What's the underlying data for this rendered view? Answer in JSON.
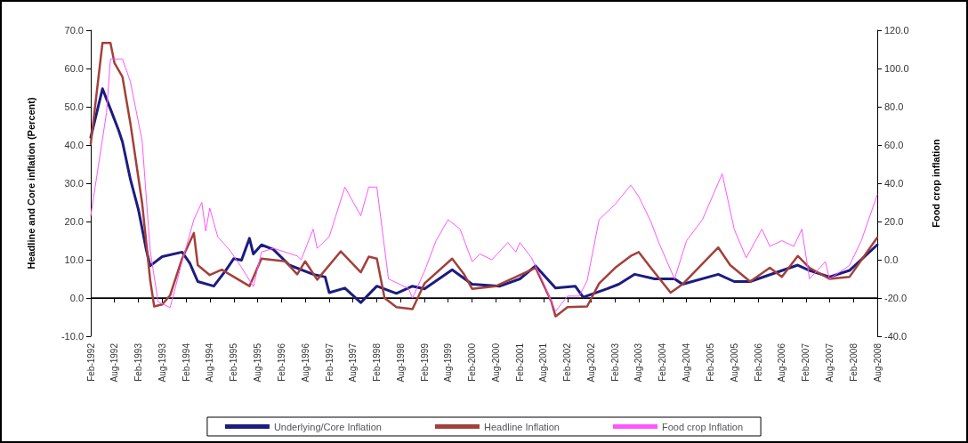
{
  "chart_data": {
    "type": "line",
    "ylabel": "Headline and Core inflation (Percent)",
    "y2label": "Food crop inflation",
    "xlim": [
      "1992-02",
      "2008-08"
    ],
    "xticks": [
      {
        "value": "1992-02",
        "label": "Feb-1992"
      },
      {
        "value": "1992-08",
        "label": "Aug-1992"
      },
      {
        "value": "1993-02",
        "label": "Feb-1993"
      },
      {
        "value": "1993-08",
        "label": "Aug-1993"
      },
      {
        "value": "1994-02",
        "label": "Feb-1994"
      },
      {
        "value": "1994-08",
        "label": "Aug-1994"
      },
      {
        "value": "1995-02",
        "label": "Feb-1995"
      },
      {
        "value": "1995-08",
        "label": "Aug-1995"
      },
      {
        "value": "1996-02",
        "label": "Feb-1996"
      },
      {
        "value": "1996-08",
        "label": "Aug-1996"
      },
      {
        "value": "1997-02",
        "label": "Feb-1997"
      },
      {
        "value": "1997-08",
        "label": "Aug-1997"
      },
      {
        "value": "1998-02",
        "label": "Feb-1998"
      },
      {
        "value": "1998-08",
        "label": "Aug-1998"
      },
      {
        "value": "1999-02",
        "label": "Feb-1999"
      },
      {
        "value": "1999-08",
        "label": "Aug-1999"
      },
      {
        "value": "2000-02",
        "label": "Feb-2000"
      },
      {
        "value": "2000-08",
        "label": "Aug-2000"
      },
      {
        "value": "2001-02",
        "label": "Feb-2001"
      },
      {
        "value": "2001-08",
        "label": "Aug-2001"
      },
      {
        "value": "2002-02",
        "label": "Feb-2002"
      },
      {
        "value": "2002-08",
        "label": "Aug-2002"
      },
      {
        "value": "2003-02",
        "label": "Feb-2003"
      },
      {
        "value": "2003-08",
        "label": "Aug-2003"
      },
      {
        "value": "2004-02",
        "label": "Feb-2004"
      },
      {
        "value": "2004-08",
        "label": "Aug-2004"
      },
      {
        "value": "2005-02",
        "label": "Feb-2005"
      },
      {
        "value": "2005-08",
        "label": "Aug-2005"
      },
      {
        "value": "2006-02",
        "label": "Feb-2006"
      },
      {
        "value": "2006-08",
        "label": "Aug-2006"
      },
      {
        "value": "2007-02",
        "label": "Feb-2007"
      },
      {
        "value": "2007-08",
        "label": "Aug-2007"
      },
      {
        "value": "2008-02",
        "label": "Feb-2008"
      },
      {
        "value": "2008-08",
        "label": "Aug-2008"
      }
    ],
    "ylim": [
      -10,
      70
    ],
    "yticks": [
      {
        "value": -10,
        "label": "-10.0"
      },
      {
        "value": 0,
        "label": "0.0"
      },
      {
        "value": 10,
        "label": "10.0"
      },
      {
        "value": 20,
        "label": "20.0"
      },
      {
        "value": 30,
        "label": "30.0"
      },
      {
        "value": 40,
        "label": "40.0"
      },
      {
        "value": 50,
        "label": "50.0"
      },
      {
        "value": 60,
        "label": "60.0"
      },
      {
        "value": 70,
        "label": "70.0"
      }
    ],
    "y2lim": [
      -40,
      120
    ],
    "y2ticks": [
      {
        "value": -40,
        "label": "-40.0"
      },
      {
        "value": -20,
        "label": "-20.0"
      },
      {
        "value": 0,
        "label": "0.0"
      },
      {
        "value": 20,
        "label": "20.0"
      },
      {
        "value": 40,
        "label": "40.0"
      },
      {
        "value": 60,
        "label": "60.0"
      },
      {
        "value": 80,
        "label": "80.0"
      },
      {
        "value": 100,
        "label": "100.0"
      },
      {
        "value": 120,
        "label": "120.0"
      }
    ],
    "ref_lines": [
      {
        "axis": "y",
        "value": 0,
        "color": "#000000"
      }
    ],
    "grid": false,
    "legend": "bottom",
    "marker": "none",
    "line_style": "solid",
    "series": [
      {
        "name": "Underlying/Core Inflation",
        "color": "#1c1c80",
        "x": [
          "1992-02",
          "1992-05",
          "1992-07",
          "1992-09",
          "1992-10",
          "1992-12",
          "1993-02",
          "1993-04",
          "1993-05",
          "1993-08",
          "1994-01",
          "1994-03",
          "1994-05",
          "1994-09",
          "1994-12",
          "1995-02",
          "1995-04",
          "1995-06",
          "1995-07",
          "1995-09",
          "1995-12",
          "1996-04",
          "1996-10",
          "1997-01",
          "1997-02",
          "1997-06",
          "1997-10",
          "1998-02",
          "1998-07",
          "1998-11",
          "1999-02",
          "1999-09",
          "2000-02",
          "2000-09",
          "2001-02",
          "2001-06",
          "2001-11",
          "2002-04",
          "2002-06",
          "2002-12",
          "2003-03",
          "2003-07",
          "2003-12",
          "2004-05",
          "2004-07",
          "2005-04",
          "2005-08",
          "2005-12",
          "2006-12",
          "2007-03",
          "2007-08",
          "2008-01",
          "2008-08"
        ],
        "values": [
          42,
          54.7,
          49.4,
          43.9,
          40.8,
          31,
          23,
          12.7,
          8.4,
          10.8,
          12,
          9.1,
          4.3,
          3.1,
          7.2,
          10.3,
          9.9,
          15.6,
          11.5,
          13.9,
          12.7,
          8.6,
          6.2,
          5.5,
          1.4,
          2.6,
          -1.2,
          3.1,
          1.2,
          3.1,
          2.4,
          7.4,
          3.6,
          3.1,
          5,
          8.4,
          2.6,
          3.1,
          0.2,
          2.4,
          3.6,
          6.2,
          5,
          5,
          3.6,
          6.2,
          4.3,
          4.3,
          8.6,
          7.2,
          5.5,
          7.2,
          13.9
        ]
      },
      {
        "name": "Headline Inflation",
        "color": "#a3403a",
        "x": [
          "1992-02",
          "1992-05",
          "1992-07",
          "1992-08",
          "1992-10",
          "1992-12",
          "1993-03",
          "1993-05",
          "1993-06",
          "1993-08",
          "1993-10",
          "1994-01",
          "1994-04",
          "1994-05",
          "1994-08",
          "1994-11",
          "1995-06",
          "1995-09",
          "1996-03",
          "1996-06",
          "1996-08",
          "1996-11",
          "1997-05",
          "1997-10",
          "1997-12",
          "1998-02",
          "1998-04",
          "1998-07",
          "1998-11",
          "1999-02",
          "1999-09",
          "1999-12",
          "2000-02",
          "2000-08",
          "2001-06",
          "2001-10",
          "2001-11",
          "2002-02",
          "2002-07",
          "2002-10",
          "2003-02",
          "2003-06",
          "2003-08",
          "2003-11",
          "2004-04",
          "2004-07",
          "2005-04",
          "2005-07",
          "2005-12",
          "2006-05",
          "2006-08",
          "2006-12",
          "2007-03",
          "2007-08",
          "2008-01",
          "2008-08"
        ],
        "values": [
          40.3,
          66.7,
          66.7,
          61.4,
          57.8,
          45.6,
          24.7,
          4.8,
          -2.2,
          -1.7,
          0.7,
          10.3,
          17,
          8.6,
          6,
          7.4,
          3.1,
          10.3,
          9.6,
          6.2,
          9.6,
          4.8,
          12.2,
          6.7,
          10.8,
          10.3,
          0,
          -2.4,
          -2.9,
          3.8,
          10.3,
          6.2,
          2.4,
          3.1,
          7.9,
          -1,
          -4.8,
          -2.4,
          -2.2,
          3.8,
          7.9,
          11,
          12,
          7.9,
          1.4,
          3.6,
          13.2,
          8.6,
          4.3,
          7.9,
          5.5,
          11,
          7.9,
          5,
          5.5,
          15.8
        ]
      },
      {
        "name": "Food crop Inflation",
        "color": "#ff55ff",
        "axis": "y2",
        "x": [
          "1992-02",
          "1992-06",
          "1992-07",
          "1992-10",
          "1992-12",
          "1993-03",
          "1993-05",
          "1993-07",
          "1993-10",
          "1994-01",
          "1994-04",
          "1994-06",
          "1994-07",
          "1994-08",
          "1994-10",
          "1995-01",
          "1995-04",
          "1995-07",
          "1995-09",
          "1995-12",
          "1996-06",
          "1996-07",
          "1996-10",
          "1996-11",
          "1997-02",
          "1997-06",
          "1997-10",
          "1997-12",
          "1998-02",
          "1998-05",
          "1998-10",
          "1998-11",
          "1999-02",
          "1999-05",
          "1999-08",
          "1999-11",
          "2000-02",
          "2000-04",
          "2000-07",
          "2000-11",
          "2001-01",
          "2001-02",
          "2001-05",
          "2001-08",
          "2001-11",
          "2002-02",
          "2002-05",
          "2002-07",
          "2002-10",
          "2003-02",
          "2003-06",
          "2003-08",
          "2003-11",
          "2004-01",
          "2004-05",
          "2004-08",
          "2004-12",
          "2005-05",
          "2005-08",
          "2005-11",
          "2006-03",
          "2006-05",
          "2006-08",
          "2006-11",
          "2007-01",
          "2007-03",
          "2007-07",
          "2007-08",
          "2008-01",
          "2008-04",
          "2008-08"
        ],
        "values": [
          23,
          77,
          105,
          105,
          93,
          62,
          5,
          -22,
          -25,
          -1,
          21,
          30,
          15,
          27,
          12,
          5,
          -4,
          -14,
          4,
          6,
          2,
          0,
          16,
          6,
          12,
          38,
          23,
          38,
          38,
          -10,
          -15,
          -20,
          -6,
          10,
          21,
          16,
          -1,
          3,
          0,
          9,
          4,
          9,
          1,
          -12,
          -27,
          -19,
          -19,
          -11,
          21,
          29,
          39,
          33,
          20,
          9,
          -10,
          10,
          21,
          45,
          16,
          1,
          16,
          7,
          10,
          7,
          16,
          -10,
          -1,
          -10,
          -3,
          10,
          34
        ]
      }
    ]
  }
}
